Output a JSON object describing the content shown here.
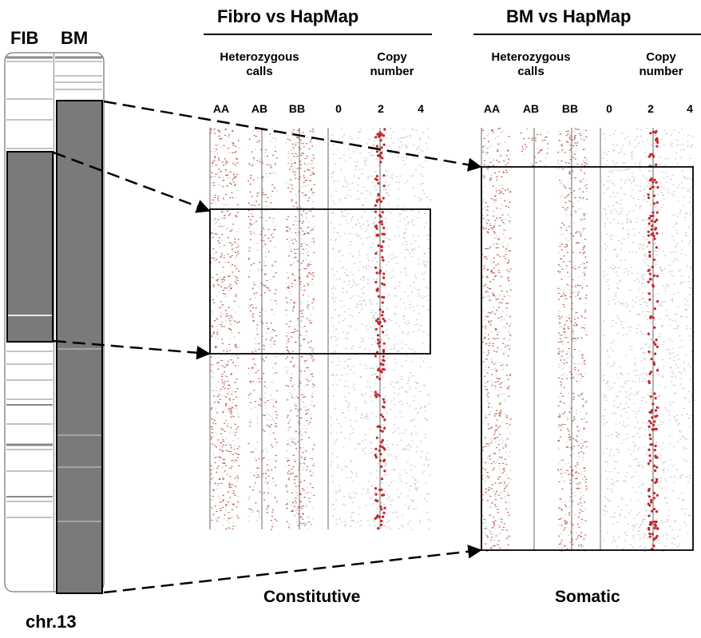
{
  "chromosome": {
    "columns": [
      "FIB",
      "BM"
    ],
    "label": "chr.13"
  },
  "panels": [
    {
      "id": "fibro",
      "title": "Fibro vs HapMap",
      "het_header": [
        "Heterozygous",
        "calls"
      ],
      "cn_header": [
        "Copy",
        "number"
      ],
      "genotype_ticks": [
        "AA",
        "AB",
        "BB"
      ],
      "cn_ticks": [
        "0",
        "2",
        "4"
      ],
      "caption": "Constitutive"
    },
    {
      "id": "bm",
      "title": "BM vs HapMap",
      "het_header": [
        "Heterozygous",
        "calls"
      ],
      "cn_header": [
        "Copy",
        "number"
      ],
      "genotype_ticks": [
        "AA",
        "AB",
        "BB"
      ],
      "cn_ticks": [
        "0",
        "2",
        "4"
      ],
      "caption": "Somatic"
    }
  ],
  "colors": {
    "region_fill": "#7a7a7a",
    "het_dots": "#b0413a",
    "cn_dots": "#c8c8c8",
    "cn_mean": "#c0262a"
  }
}
